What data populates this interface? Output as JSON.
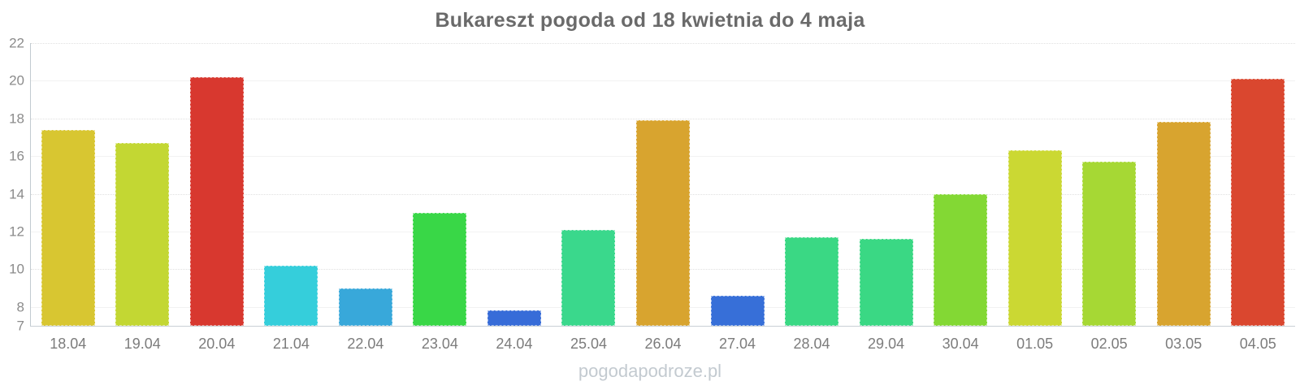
{
  "chart_data": {
    "type": "bar",
    "title": "Bukareszt pogoda od 18 kwietnia do 4 maja",
    "xlabel": "",
    "ylabel": "",
    "ylim": [
      7,
      22
    ],
    "yticks": [
      7,
      8,
      10,
      12,
      14,
      16,
      18,
      20,
      22
    ],
    "grid": {
      "orientation": "horizontal",
      "solid_ticks": [
        8,
        12,
        16,
        20
      ],
      "dotted_ticks": [
        10,
        14,
        18,
        22
      ]
    },
    "legend": false,
    "categories": [
      "18.04",
      "19.04",
      "20.04",
      "21.04",
      "22.04",
      "23.04",
      "24.04",
      "25.04",
      "26.04",
      "27.04",
      "28.04",
      "29.04",
      "30.04",
      "01.05",
      "02.05",
      "03.05",
      "04.05"
    ],
    "values": [
      17.4,
      16.7,
      20.2,
      10.2,
      9.0,
      13.0,
      7.8,
      12.1,
      17.9,
      8.6,
      11.7,
      11.6,
      14.0,
      16.3,
      15.7,
      17.8,
      20.1
    ],
    "bar_colors": [
      "#d8c631",
      "#c3d733",
      "#d8382f",
      "#35cedb",
      "#38a8da",
      "#39d747",
      "#376cd8",
      "#3ad88c",
      "#d8a42f",
      "#376fd8",
      "#3ad884",
      "#3ad884",
      "#83d834",
      "#cbd833",
      "#a6d834",
      "#d8a42f",
      "#da472f"
    ]
  },
  "watermark": "pogodapodroze.pl",
  "style_colors": {
    "background": "#ffffff",
    "title_color": "#6a6a6a",
    "y_axis_line": "#c2cbd1",
    "x_axis_line": "#c9d0d5",
    "grid_solid": "#f2f2f2",
    "grid_dotted": "#e0e0e0",
    "y_tick_label_color": "#8b8b8b",
    "x_tick_label_color": "#7c7c7c",
    "watermark_color": "#c3cad0"
  }
}
